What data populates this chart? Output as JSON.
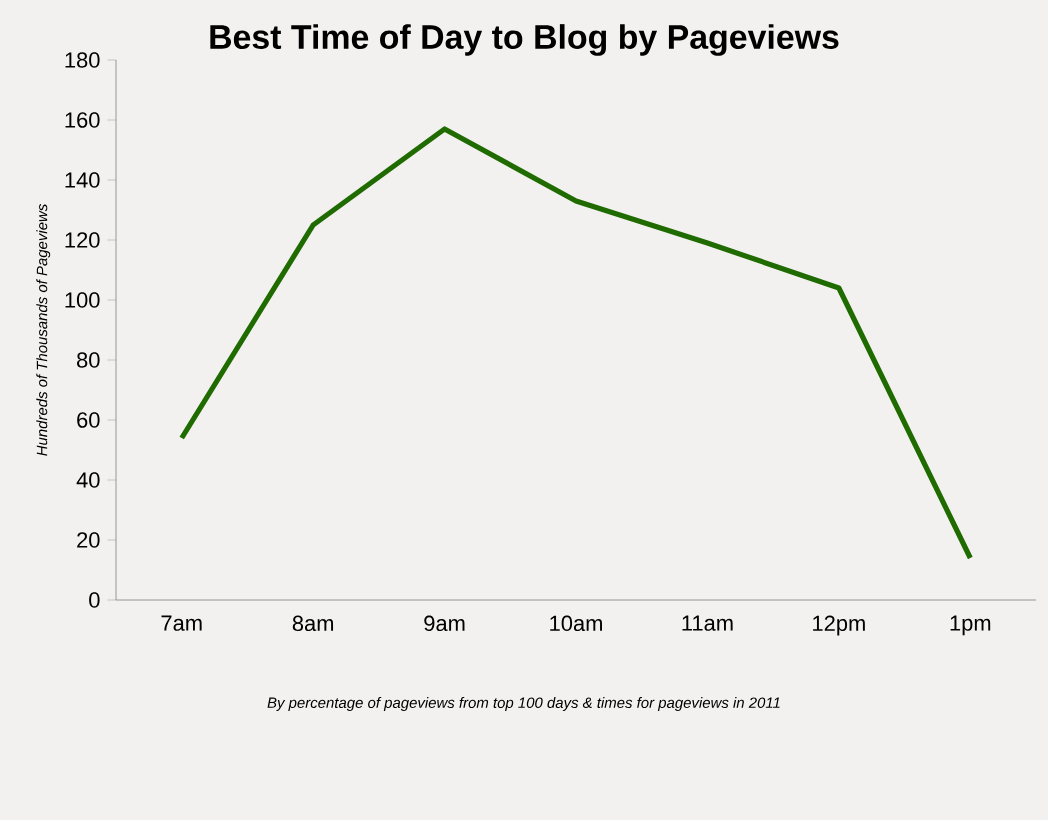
{
  "chart_data": {
    "type": "line",
    "title": "Best Time of Day to Blog by Pageviews",
    "ylabel": "Hundreds of Thousands of Pageviews",
    "categories": [
      "7am",
      "8am",
      "9am",
      "10am",
      "11am",
      "12pm",
      "1pm"
    ],
    "values": [
      54,
      125,
      157,
      133,
      119,
      104,
      14
    ],
    "color": "#1f6b00",
    "ylim": [
      0,
      180
    ],
    "yticks": [
      0,
      20,
      40,
      60,
      80,
      100,
      120,
      140,
      160,
      180
    ],
    "grid": false,
    "marker": "none",
    "line_style": "solid",
    "annotations": [
      "By percentage of pageviews from top 100 days & times for pageviews in 2011"
    ]
  }
}
